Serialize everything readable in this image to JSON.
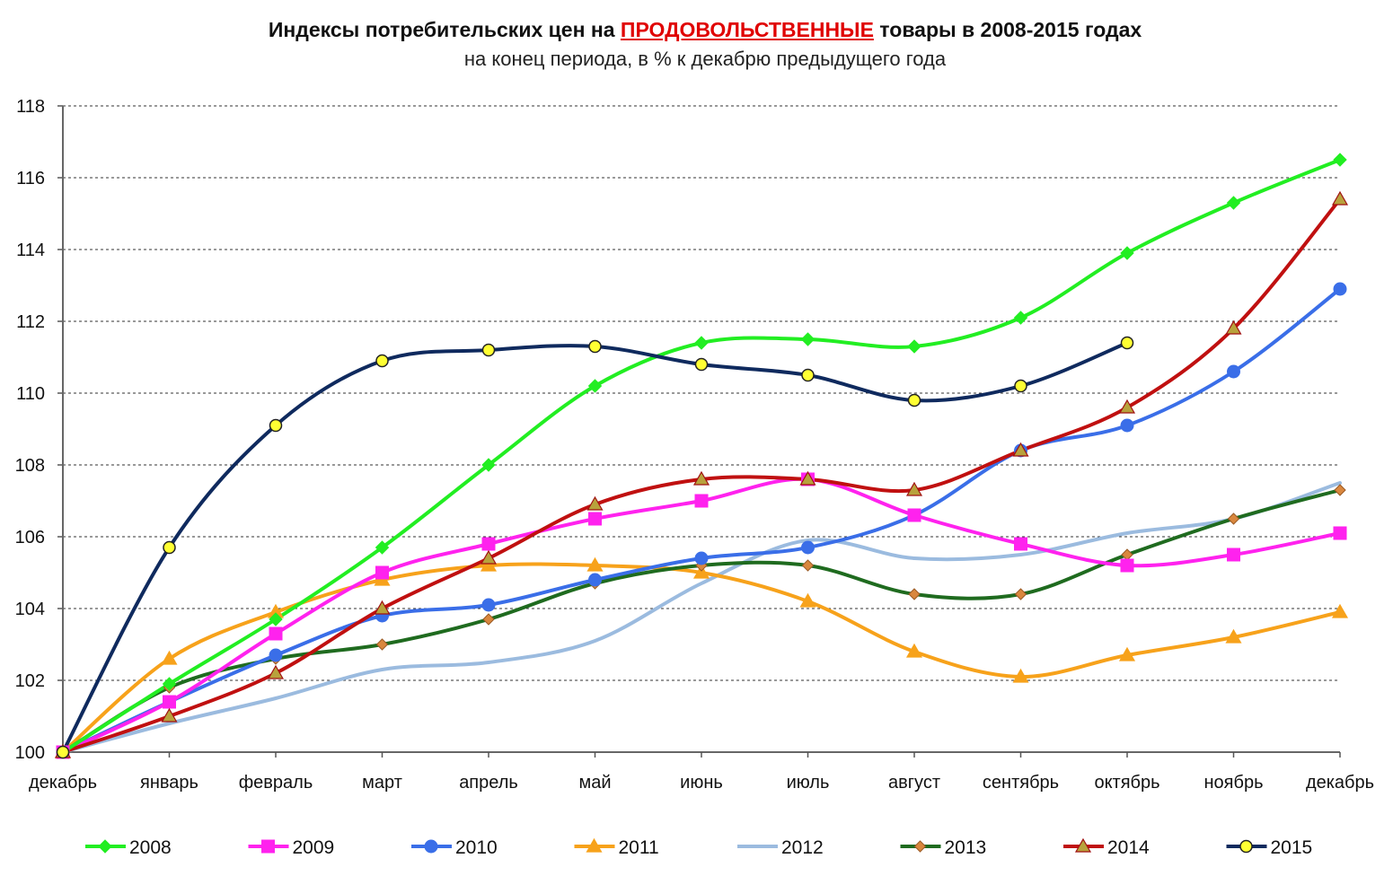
{
  "chart_data": {
    "type": "line",
    "title_prefix": "Индексы потребительских цен на ",
    "title_highlight": "ПРОДОВОЛЬСТВЕННЫЕ",
    "title_suffix": " товары в 2008-2015 годах",
    "subtitle": "на конец периода, в % к декабрю предыдущего года",
    "categories": [
      "декабрь",
      "январь",
      "февраль",
      "март",
      "апрель",
      "май",
      "июнь",
      "июль",
      "август",
      "сентябрь",
      "октябрь",
      "ноябрь",
      "декабрь"
    ],
    "ylim": [
      100,
      118
    ],
    "yticks": [
      "100",
      "102",
      "104",
      "106",
      "108",
      "110",
      "112",
      "114",
      "116",
      "118"
    ],
    "grid": true,
    "legend_position": "bottom",
    "series": [
      {
        "name": "2008",
        "color": "#22ee22",
        "marker": "diamond",
        "values": [
          100,
          101.9,
          103.7,
          105.7,
          108.0,
          110.2,
          111.4,
          111.5,
          111.3,
          112.1,
          113.9,
          115.3,
          116.5
        ]
      },
      {
        "name": "2009",
        "color": "#ff22ee",
        "marker": "square",
        "values": [
          100,
          101.4,
          103.3,
          105.0,
          105.8,
          106.5,
          107.0,
          107.6,
          106.6,
          105.8,
          105.2,
          105.5,
          106.1
        ]
      },
      {
        "name": "2010",
        "color": "#3a6ee8",
        "marker": "circle",
        "values": [
          100,
          101.4,
          102.7,
          103.8,
          104.1,
          104.8,
          105.4,
          105.7,
          106.6,
          108.4,
          109.1,
          110.6,
          112.9
        ]
      },
      {
        "name": "2011",
        "color": "#f7a21b",
        "marker": "triangle",
        "values": [
          100,
          102.6,
          103.9,
          104.8,
          105.2,
          105.2,
          105.0,
          104.2,
          102.8,
          102.1,
          102.7,
          103.2,
          103.9
        ]
      },
      {
        "name": "2012",
        "color": "#9bbbdf",
        "marker": "none",
        "values": [
          100,
          100.8,
          101.5,
          102.3,
          102.5,
          103.1,
          104.7,
          105.9,
          105.4,
          105.5,
          106.1,
          106.5,
          107.5
        ]
      },
      {
        "name": "2013",
        "color": "#1f6b1f",
        "marker": "smalldiamond",
        "values": [
          100,
          101.8,
          102.6,
          103.0,
          103.7,
          104.7,
          105.2,
          105.2,
          104.4,
          104.4,
          105.5,
          106.5,
          107.3
        ]
      },
      {
        "name": "2014",
        "color": "#c01010",
        "marker": "triangle",
        "values": [
          100,
          101.0,
          102.2,
          104.0,
          105.4,
          106.9,
          107.6,
          107.6,
          107.3,
          108.4,
          109.6,
          111.8,
          115.4
        ]
      },
      {
        "name": "2015",
        "color": "#0f2a5e",
        "marker": "yellowcircle",
        "values": [
          100,
          105.7,
          109.1,
          110.9,
          111.2,
          111.3,
          110.8,
          110.5,
          109.8,
          110.2,
          111.4,
          null,
          null
        ]
      }
    ]
  }
}
